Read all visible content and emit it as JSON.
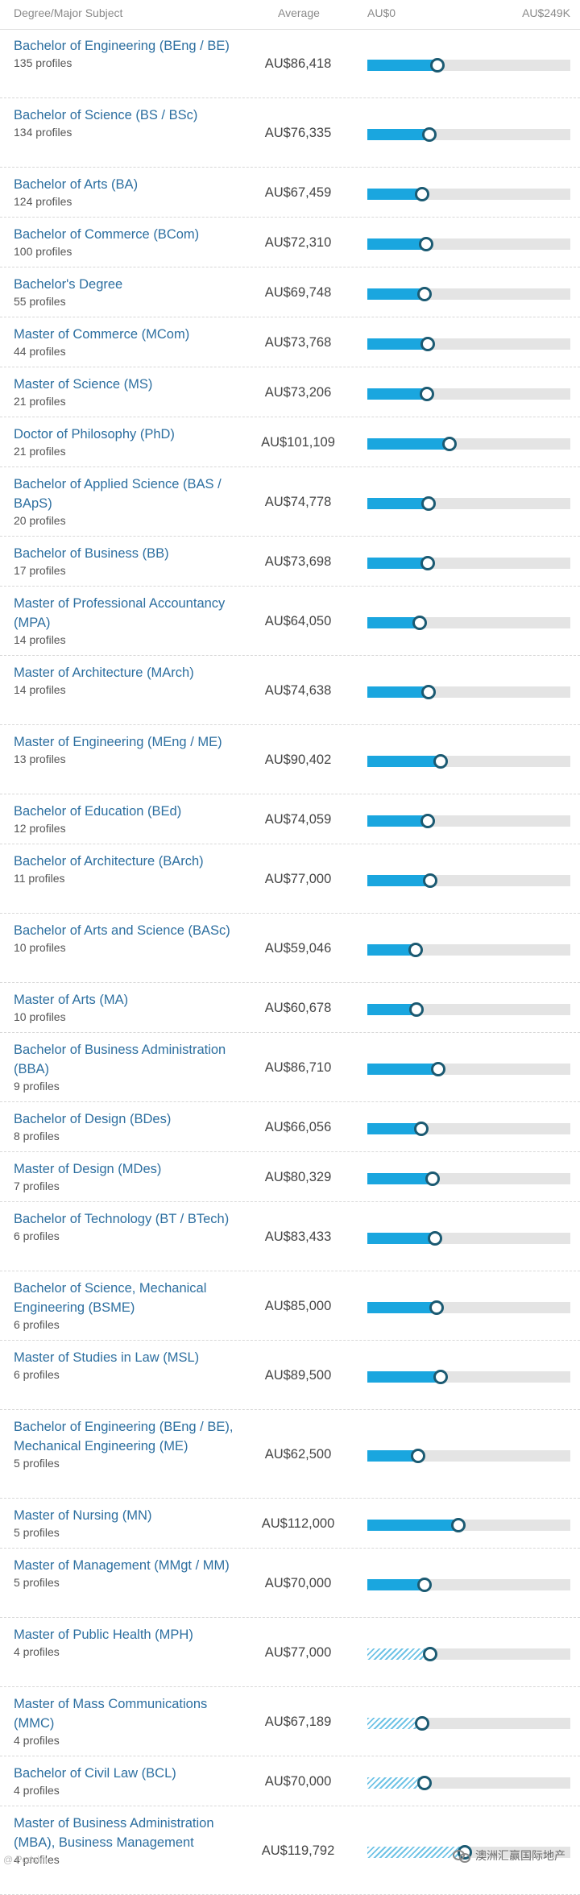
{
  "header": {
    "degree_label": "Degree/Major Subject",
    "average_label": "Average",
    "axis_min_label": "AU$0",
    "axis_max_label": "AU$249K"
  },
  "colors": {
    "bar_fill": "#1aa6df",
    "bar_track": "#e4e4e4",
    "marker_border": "#1b5a72",
    "link_text": "#2d6fa0"
  },
  "chart_data": {
    "type": "bar",
    "orientation": "horizontal",
    "xlim": [
      0,
      249000
    ],
    "currency": "AU$",
    "rows": [
      {
        "name": "Bachelor of Engineering (BEng / BE)",
        "profiles": "135 profiles",
        "average": "AU$86,418",
        "value": 86418,
        "limited_data": false
      },
      {
        "name": "Bachelor of Science (BS / BSc)",
        "profiles": "134 profiles",
        "average": "AU$76,335",
        "value": 76335,
        "limited_data": false
      },
      {
        "name": "Bachelor of Arts (BA)",
        "profiles": "124 profiles",
        "average": "AU$67,459",
        "value": 67459,
        "limited_data": false
      },
      {
        "name": "Bachelor of Commerce (BCom)",
        "profiles": "100 profiles",
        "average": "AU$72,310",
        "value": 72310,
        "limited_data": false
      },
      {
        "name": "Bachelor's Degree",
        "profiles": "55 profiles",
        "average": "AU$69,748",
        "value": 69748,
        "limited_data": false
      },
      {
        "name": "Master of Commerce (MCom)",
        "profiles": "44 profiles",
        "average": "AU$73,768",
        "value": 73768,
        "limited_data": false
      },
      {
        "name": "Master of Science (MS)",
        "profiles": "21 profiles",
        "average": "AU$73,206",
        "value": 73206,
        "limited_data": false
      },
      {
        "name": "Doctor of Philosophy (PhD)",
        "profiles": "21 profiles",
        "average": "AU$101,109",
        "value": 101109,
        "limited_data": false
      },
      {
        "name": "Bachelor of Applied Science (BAS / BApS)",
        "profiles": "20 profiles",
        "average": "AU$74,778",
        "value": 74778,
        "limited_data": false
      },
      {
        "name": "Bachelor of Business (BB)",
        "profiles": "17 profiles",
        "average": "AU$73,698",
        "value": 73698,
        "limited_data": false
      },
      {
        "name": "Master of Professional Accountancy (MPA)",
        "profiles": "14 profiles",
        "average": "AU$64,050",
        "value": 64050,
        "limited_data": false
      },
      {
        "name": "Master of Architecture (MArch)",
        "profiles": "14 profiles",
        "average": "AU$74,638",
        "value": 74638,
        "limited_data": false
      },
      {
        "name": "Master of Engineering (MEng / ME)",
        "profiles": "13 profiles",
        "average": "AU$90,402",
        "value": 90402,
        "limited_data": false
      },
      {
        "name": "Bachelor of Education (BEd)",
        "profiles": "12 profiles",
        "average": "AU$74,059",
        "value": 74059,
        "limited_data": false
      },
      {
        "name": "Bachelor of Architecture (BArch)",
        "profiles": "11 profiles",
        "average": "AU$77,000",
        "value": 77000,
        "limited_data": false
      },
      {
        "name": "Bachelor of Arts and Science (BASc)",
        "profiles": "10 profiles",
        "average": "AU$59,046",
        "value": 59046,
        "limited_data": false
      },
      {
        "name": "Master of Arts (MA)",
        "profiles": "10 profiles",
        "average": "AU$60,678",
        "value": 60678,
        "limited_data": false
      },
      {
        "name": "Bachelor of Business Administration (BBA)",
        "profiles": "9 profiles",
        "average": "AU$86,710",
        "value": 86710,
        "limited_data": false
      },
      {
        "name": "Bachelor of Design (BDes)",
        "profiles": "8 profiles",
        "average": "AU$66,056",
        "value": 66056,
        "limited_data": false
      },
      {
        "name": "Master of Design (MDes)",
        "profiles": "7 profiles",
        "average": "AU$80,329",
        "value": 80329,
        "limited_data": false
      },
      {
        "name": "Bachelor of Technology (BT / BTech)",
        "profiles": "6 profiles",
        "average": "AU$83,433",
        "value": 83433,
        "limited_data": false
      },
      {
        "name": "Bachelor of Science, Mechanical Engineering (BSME)",
        "profiles": "6 profiles",
        "average": "AU$85,000",
        "value": 85000,
        "limited_data": false
      },
      {
        "name": "Master of Studies in Law (MSL)",
        "profiles": "6 profiles",
        "average": "AU$89,500",
        "value": 89500,
        "limited_data": false
      },
      {
        "name": "Bachelor of Engineering (BEng / BE), Mechanical Engineering (ME)",
        "profiles": "5 profiles",
        "average": "AU$62,500",
        "value": 62500,
        "limited_data": false
      },
      {
        "name": "Master of Nursing (MN)",
        "profiles": "5 profiles",
        "average": "AU$112,000",
        "value": 112000,
        "limited_data": false
      },
      {
        "name": "Master of Management (MMgt / MM)",
        "profiles": "5 profiles",
        "average": "AU$70,000",
        "value": 70000,
        "limited_data": false
      },
      {
        "name": "Master of Public Health (MPH)",
        "profiles": "4 profiles",
        "average": "AU$77,000",
        "value": 77000,
        "limited_data": true
      },
      {
        "name": "Master of Mass Communications (MMC)",
        "profiles": "4 profiles",
        "average": "AU$67,189",
        "value": 67189,
        "limited_data": true
      },
      {
        "name": "Bachelor of Civil Law (BCL)",
        "profiles": "4 profiles",
        "average": "AU$70,000",
        "value": 70000,
        "limited_data": true
      },
      {
        "name": "Master of Business Administration (MBA), Business Management",
        "profiles": "4 profiles",
        "average": "AU$119,792",
        "value": 119792,
        "limited_data": true
      }
    ]
  },
  "watermark": {
    "text": "澳洲汇赢国际地产",
    "icon": "wechat-icon",
    "left_text": "@ Pcdsim"
  }
}
